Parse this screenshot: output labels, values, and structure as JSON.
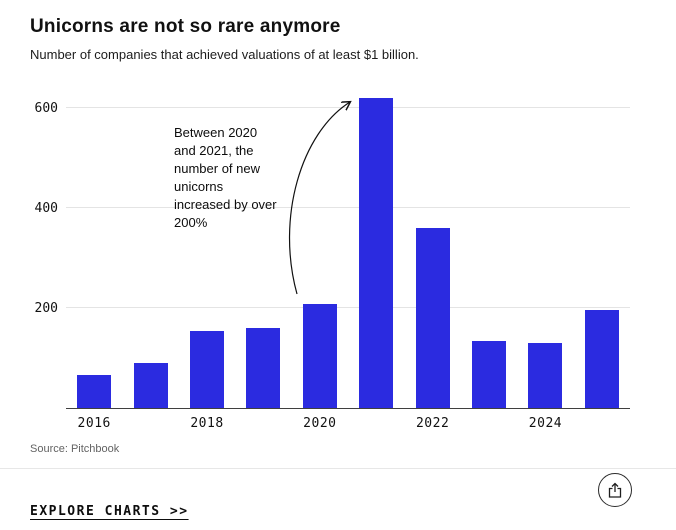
{
  "header": {
    "title": "Unicorns are not so rare anymore",
    "subtitle": "Number of companies that achieved valuations of at least $1 billion."
  },
  "chart_data": {
    "type": "bar",
    "categories": [
      "2016",
      "2017",
      "2018",
      "2019",
      "2020",
      "2021",
      "2022",
      "2023",
      "2024",
      "2025"
    ],
    "values": [
      66,
      90,
      155,
      160,
      208,
      620,
      360,
      135,
      130,
      196
    ],
    "x_tick_labels": [
      "2016",
      "2018",
      "2020",
      "2022",
      "2024"
    ],
    "yticks": [
      200,
      400,
      600
    ],
    "ylim": [
      0,
      640
    ],
    "bar_color": "#2b2be0",
    "grid": "horizontal",
    "annotation": "Between 2020 and 2021, the number of new unicorns increased by over 200%"
  },
  "source": "Source: Pitchbook",
  "footer": {
    "explore_label": "EXPLORE CHARTS >>"
  }
}
